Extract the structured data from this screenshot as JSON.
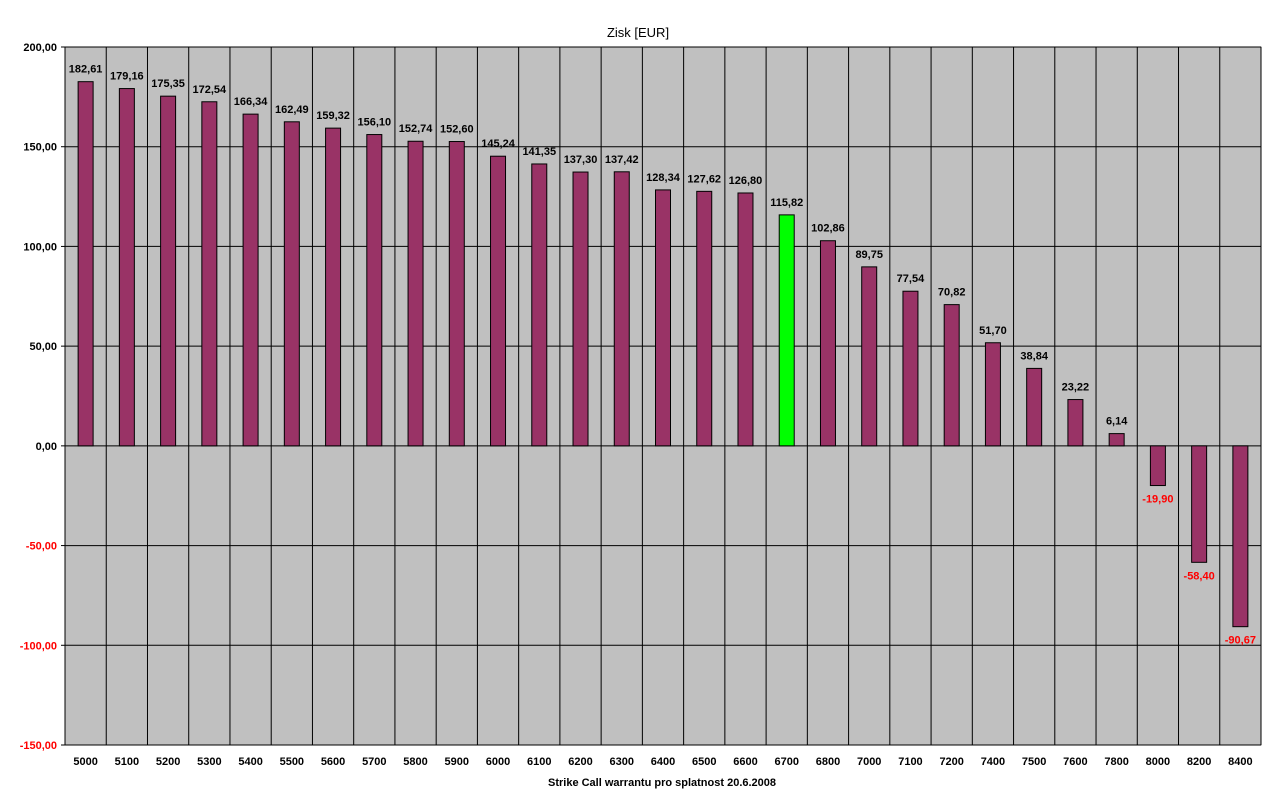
{
  "chart_data": {
    "type": "bar",
    "title": "Zisk [EUR]",
    "xlabel": "Strike Call warrantu pro splatnost 20.6.2008",
    "ylabel": "",
    "ylim": [
      -150,
      200
    ],
    "yticks": [
      200,
      150,
      100,
      50,
      0,
      -50,
      -100,
      -150
    ],
    "ytick_labels": [
      "200,00",
      "150,00",
      "100,00",
      "50,00",
      "0,00",
      "-50,00",
      "-100,00",
      "-150,00"
    ],
    "categories": [
      "5000",
      "5100",
      "5200",
      "5300",
      "5400",
      "5500",
      "5600",
      "5700",
      "5800",
      "5900",
      "6000",
      "6100",
      "6200",
      "6300",
      "6400",
      "6500",
      "6600",
      "6700",
      "6800",
      "7000",
      "7100",
      "7200",
      "7400",
      "7500",
      "7600",
      "7800",
      "8000",
      "8200",
      "8400"
    ],
    "values": [
      182.61,
      179.16,
      175.35,
      172.54,
      166.34,
      162.49,
      159.32,
      156.1,
      152.74,
      152.6,
      145.24,
      141.35,
      137.3,
      137.42,
      128.34,
      127.62,
      126.8,
      115.82,
      102.86,
      89.75,
      77.54,
      70.82,
      51.7,
      38.84,
      23.22,
      6.14,
      -19.9,
      -58.4,
      -90.67
    ],
    "value_labels": [
      "182,61",
      "179,16",
      "175,35",
      "172,54",
      "166,34",
      "162,49",
      "159,32",
      "156,10",
      "152,74",
      "152,60",
      "145,24",
      "141,35",
      "137,30",
      "137,42",
      "128,34",
      "127,62",
      "126,80",
      "115,82",
      "102,86",
      "89,75",
      "77,54",
      "70,82",
      "51,70",
      "38,84",
      "23,22",
      "6,14",
      "-19,90",
      "-58,40",
      "-90,67"
    ],
    "highlight_category": "6700",
    "grid": true,
    "legend": "none",
    "colors": {
      "bar": "#993366",
      "highlight": "#00ff00",
      "plot_background": "#c0c0c0",
      "negative_label": "#ff0000",
      "negative_tick": "#ff0000",
      "text": "#000000"
    }
  }
}
